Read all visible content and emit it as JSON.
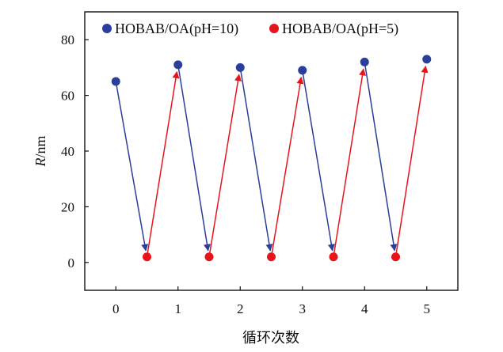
{
  "chart_data": {
    "type": "line",
    "xlabel": "循环次数",
    "ylabel": "R/nm",
    "ylabel_italic": "R",
    "ylabel_unit": "/nm",
    "xlim": [
      -0.5,
      5.5
    ],
    "ylim": [
      -10,
      90
    ],
    "xticks": [
      0,
      1,
      2,
      3,
      4,
      5
    ],
    "yticks": [
      0,
      20,
      40,
      60,
      80
    ],
    "grid": false,
    "legend_position": "top",
    "series": [
      {
        "name": "HOBAB/OA(pH=10)",
        "color": "#2a3f9c",
        "x": [
          0,
          1,
          2,
          3,
          4,
          5
        ],
        "y": [
          65,
          71,
          70,
          69,
          72,
          73
        ]
      },
      {
        "name": "HOBAB/OA(pH=5)",
        "color": "#e8141c",
        "x": [
          0.5,
          1.5,
          2.5,
          3.5,
          4.5
        ],
        "y": [
          2,
          2,
          2,
          2,
          2
        ]
      }
    ],
    "arrows_blue_down": [
      [
        0,
        0.5
      ],
      [
        1,
        1.5
      ],
      [
        2,
        2.5
      ],
      [
        3,
        3.5
      ],
      [
        4,
        4.5
      ]
    ],
    "arrows_red_up": [
      [
        0.5,
        1
      ],
      [
        1.5,
        2
      ],
      [
        2.5,
        3
      ],
      [
        3.5,
        4
      ],
      [
        4.5,
        5
      ]
    ]
  }
}
